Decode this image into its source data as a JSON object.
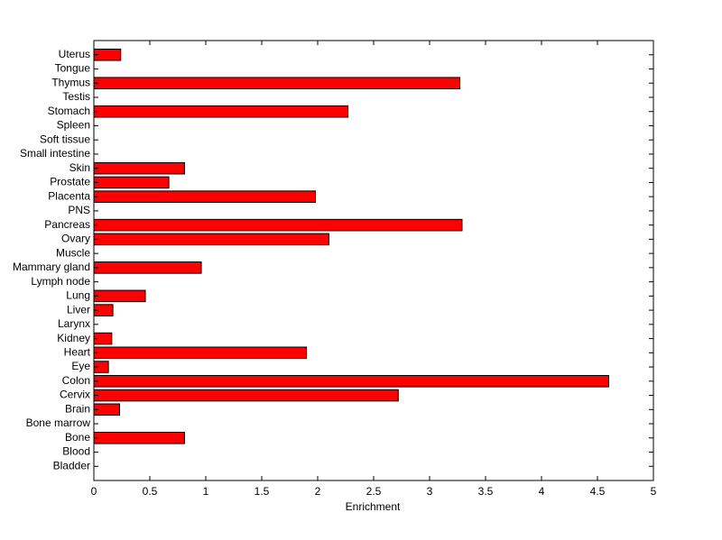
{
  "chart_data": {
    "type": "barh",
    "xlabel": "Enrichment",
    "categories": [
      "Bladder",
      "Blood",
      "Bone",
      "Bone marrow",
      "Brain",
      "Cervix",
      "Colon",
      "Eye",
      "Heart",
      "Kidney",
      "Larynx",
      "Liver",
      "Lung",
      "Lymph node",
      "Mammary gland",
      "Muscle",
      "Ovary",
      "Pancreas",
      "PNS",
      "Placenta",
      "Prostate",
      "Skin",
      "Small intestine",
      "Soft tissue",
      "Spleen",
      "Stomach",
      "Testis",
      "Thymus",
      "Tongue",
      "Uterus"
    ],
    "values": [
      0,
      0,
      0.81,
      0,
      0.23,
      2.72,
      4.6,
      0.13,
      1.9,
      0.16,
      0,
      0.17,
      0.46,
      0,
      0.96,
      0,
      2.1,
      3.29,
      0,
      1.98,
      0.67,
      0.81,
      0,
      0,
      0,
      2.27,
      0,
      3.27,
      0,
      0.24
    ],
    "color": "#ff0000",
    "xlim": [
      0,
      5
    ],
    "xticks": [
      0,
      0.5,
      1,
      1.5,
      2,
      2.5,
      3,
      3.5,
      4,
      4.5,
      5
    ]
  }
}
